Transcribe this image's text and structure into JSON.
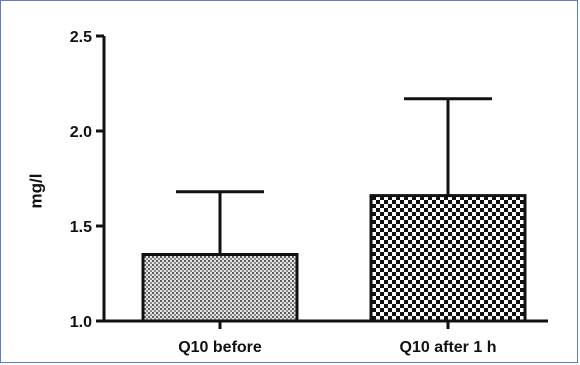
{
  "chart_data": {
    "type": "bar",
    "categories": [
      "Q10 before",
      "Q10 after 1 h"
    ],
    "values": [
      1.35,
      1.66
    ],
    "error_upper": [
      1.68,
      2.17
    ],
    "ylabel": "mg/l",
    "ylim": [
      1.0,
      2.5
    ],
    "yticks": [
      1.0,
      1.5,
      2.0,
      2.5
    ],
    "ytick_labels": [
      "1.0",
      "1.5",
      "2.0",
      "2.5"
    ],
    "bar_fills": [
      "fine-dot-pattern",
      "checkerboard-pattern"
    ],
    "grid": false
  }
}
